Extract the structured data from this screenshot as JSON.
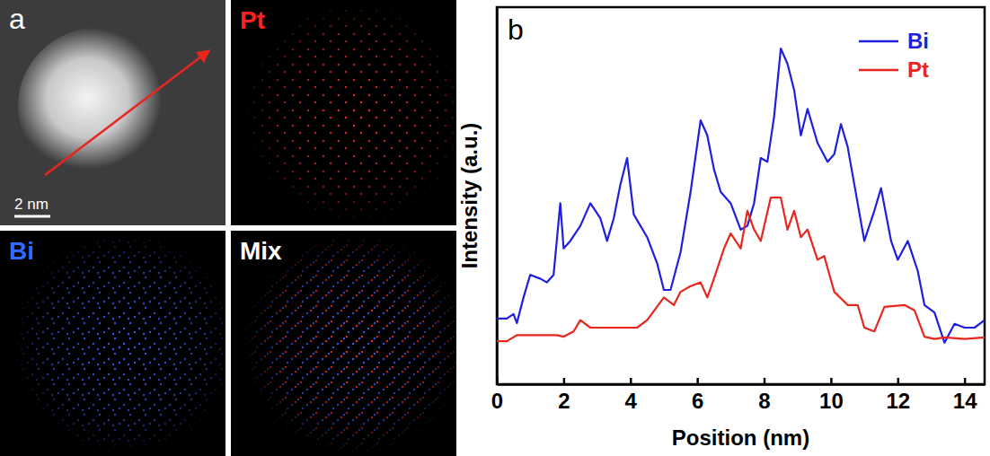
{
  "figure": {
    "letters": [
      "a",
      "b"
    ],
    "map_titles": [
      "Pt",
      "Bi",
      "Mix"
    ],
    "scale_bar": "2 nm"
  },
  "chart_data": {
    "type": "line",
    "x_label": "Position (nm)",
    "y_label": "Intensity (a.u.)",
    "xlim": [
      0,
      14.6
    ],
    "xticks": [
      0,
      2,
      4,
      6,
      8,
      10,
      12,
      14
    ],
    "ylim": [
      0,
      100
    ],
    "tick_labels": "x",
    "grid": false,
    "legend": "upper right",
    "series": [
      {
        "name": "Bi",
        "color": "#1f1fe0",
        "x": [
          0,
          0.3,
          0.5,
          0.6,
          0.8,
          1.0,
          1.3,
          1.5,
          1.7,
          1.9,
          2.0,
          2.2,
          2.5,
          2.8,
          3.1,
          3.3,
          3.5,
          3.7,
          3.9,
          4.1,
          4.3,
          4.5,
          4.8,
          5.0,
          5.2,
          5.5,
          5.8,
          6.1,
          6.3,
          6.5,
          6.7,
          7.0,
          7.3,
          7.5,
          7.7,
          7.9,
          8.1,
          8.3,
          8.5,
          8.7,
          8.9,
          9.1,
          9.3,
          9.6,
          9.9,
          10.1,
          10.3,
          10.5,
          10.8,
          11.0,
          11.3,
          11.5,
          11.8,
          12.0,
          12.3,
          12.6,
          12.8,
          13.1,
          13.4,
          13.7,
          14.0,
          14.3,
          14.6
        ],
        "values": [
          17.4,
          17.4,
          18.6,
          16.2,
          23,
          29,
          28,
          27,
          29,
          48,
          36,
          38,
          42,
          48,
          44,
          38,
          44,
          53,
          60,
          45,
          42,
          39,
          32,
          25,
          25,
          35,
          51,
          70,
          66,
          57,
          51,
          48,
          41,
          42,
          48,
          60,
          59,
          71,
          89,
          85,
          78,
          66,
          73,
          64,
          59,
          61,
          69,
          63,
          48,
          38,
          46,
          52,
          38,
          33,
          38,
          30,
          21,
          19,
          11,
          16,
          15,
          15,
          17
        ]
      },
      {
        "name": "Pt",
        "color": "#e8261e",
        "x": [
          0,
          0.3,
          0.6,
          1.8,
          2.0,
          2.3,
          2.5,
          2.8,
          4.2,
          4.5,
          5.0,
          5.3,
          5.5,
          5.8,
          6.1,
          6.3,
          6.5,
          6.8,
          7.0,
          7.3,
          7.5,
          7.7,
          7.9,
          8.2,
          8.5,
          8.7,
          8.9,
          9.1,
          9.3,
          9.6,
          9.8,
          10.1,
          10.5,
          10.8,
          11.0,
          11.3,
          11.6,
          12.2,
          12.5,
          12.8,
          13.1,
          13.4,
          14.0,
          14.6
        ],
        "values": [
          11.4,
          11.4,
          13,
          13,
          12.6,
          14,
          17,
          15,
          15,
          17,
          23,
          21,
          24.5,
          26,
          27,
          23,
          28,
          36,
          40,
          36,
          46,
          41,
          38,
          49.5,
          49.5,
          41,
          46,
          39,
          41,
          33,
          34,
          24.5,
          21,
          21,
          15,
          14,
          20.5,
          21,
          19.6,
          12.6,
          12,
          12.4,
          12,
          12.4
        ]
      }
    ]
  }
}
